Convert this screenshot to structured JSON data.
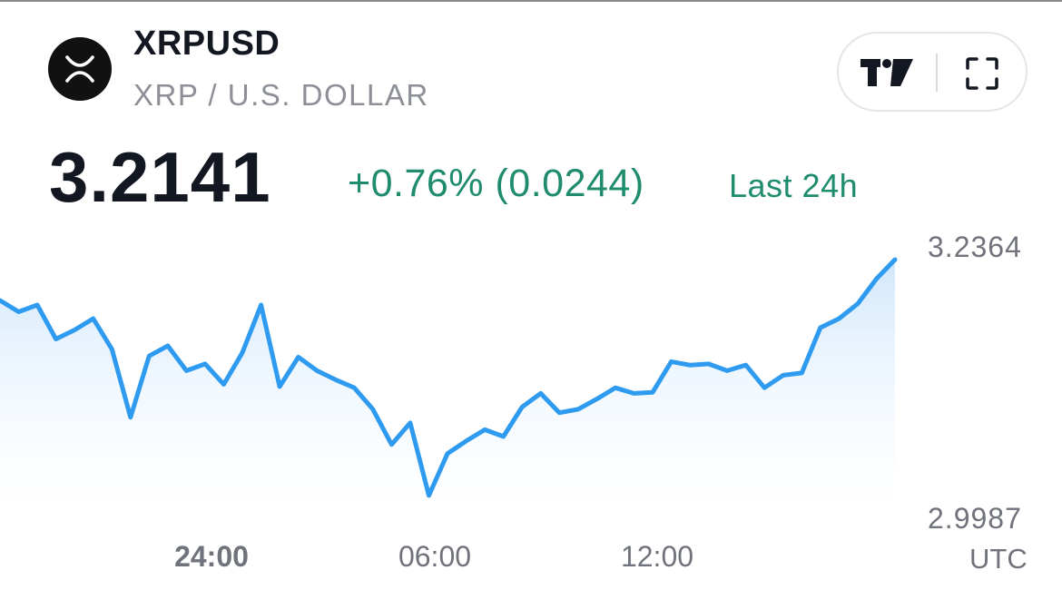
{
  "header": {
    "symbol": "XRPUSD",
    "pair_name": "XRP / U.S. DOLLAR",
    "logo_icon": "xrp-logo-icon"
  },
  "controls": {
    "tradingview_icon": "tradingview-logo-icon",
    "fullscreen_icon": "fullscreen-icon"
  },
  "quote": {
    "price": "3.2141",
    "change": "+0.76% (0.0244)",
    "period": "Last 24h",
    "change_color": "#1f8c6e"
  },
  "axes": {
    "y_high": "3.2364",
    "y_low": "2.9987",
    "timezone": "UTC",
    "x_ticks": [
      "24:00",
      "06:00",
      "12:00"
    ]
  },
  "colors": {
    "line": "#2e9bf0",
    "fill_top": "#cfe6fb",
    "text_primary": "#131722",
    "text_secondary": "#70737c"
  },
  "chart_data": {
    "type": "area",
    "x": [
      "19:00",
      "19:30",
      "20:00",
      "20:30",
      "21:00",
      "21:30",
      "22:00",
      "22:30",
      "23:00",
      "23:30",
      "24:00",
      "00:30",
      "01:00",
      "01:30",
      "02:00",
      "02:30",
      "03:00",
      "03:30",
      "04:00",
      "04:30",
      "05:00",
      "05:30",
      "06:00",
      "06:30",
      "07:00",
      "07:30",
      "08:00",
      "08:30",
      "09:00",
      "09:30",
      "10:00",
      "10:30",
      "11:00",
      "11:30",
      "12:00",
      "12:30",
      "13:00",
      "13:30",
      "14:00",
      "14:30",
      "15:00",
      "15:30",
      "16:00",
      "16:30",
      "17:00",
      "17:30",
      "18:00",
      "18:30",
      "19:00"
    ],
    "values": [
      3.19,
      3.18,
      3.186,
      3.156,
      3.164,
      3.174,
      3.147,
      3.087,
      3.141,
      3.15,
      3.128,
      3.134,
      3.116,
      3.144,
      3.186,
      3.114,
      3.14,
      3.128,
      3.12,
      3.113,
      3.094,
      3.063,
      3.082,
      3.018,
      3.055,
      3.066,
      3.076,
      3.07,
      3.096,
      3.108,
      3.091,
      3.094,
      3.103,
      3.113,
      3.108,
      3.109,
      3.136,
      3.133,
      3.134,
      3.128,
      3.133,
      3.113,
      3.124,
      3.126,
      3.166,
      3.174,
      3.187,
      3.209,
      3.226
    ],
    "ylim": [
      2.9987,
      3.2364
    ],
    "xticks": [
      "24:00",
      "06:00",
      "12:00"
    ],
    "yticks": [
      2.9987,
      3.2364
    ],
    "grid": false,
    "legend": "none"
  }
}
